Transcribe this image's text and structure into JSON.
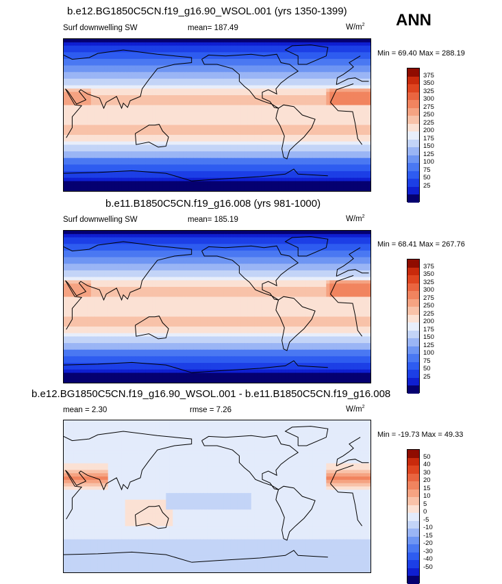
{
  "season": "ANN",
  "palette": {
    "abs": [
      "#050070",
      "#0f1fd1",
      "#1c3fe6",
      "#2e5cf0",
      "#4a78f2",
      "#6e95f3",
      "#9ab5f5",
      "#c3d4f7",
      "#e8eefb",
      "#fbe1d4",
      "#f8c2a9",
      "#f5a382",
      "#f1845f",
      "#ea6540",
      "#df4520",
      "#c92a0c",
      "#8f0c00"
    ],
    "diff": [
      "#050070",
      "#0f1fd1",
      "#1c3fe6",
      "#2e5cf0",
      "#4a78f2",
      "#6e95f3",
      "#9ab5f5",
      "#c3d4f7",
      "#e3ebfb",
      "#fbe1d4",
      "#f8c2a9",
      "#f5a382",
      "#f1845f",
      "#ea6540",
      "#df4520",
      "#c92a0c",
      "#8f0c00"
    ]
  },
  "chart_data": [
    {
      "type": "heatmap",
      "title": "b.e12.BG1850C5CN.f19_g16.90_WSOL.001 (yrs 1350-1399)",
      "variable": "Surf downwelling SW",
      "mean_label": "mean= 187.49",
      "units": "W/m",
      "units_sup": "2",
      "minmax": "Min =  69.40 Max = 288.19",
      "min": 69.4,
      "max": 288.19,
      "mean": 187.49,
      "levels": [
        "375",
        "350",
        "325",
        "300",
        "275",
        "250",
        "225",
        "200",
        "175",
        "150",
        "125",
        "100",
        "75",
        "50",
        "25"
      ],
      "kind": "abs"
    },
    {
      "type": "heatmap",
      "title": "b.e11.B1850C5CN.f19_g16.008 (yrs 981-1000)",
      "variable": "Surf downwelling SW",
      "mean_label": "mean= 185.19",
      "units": "W/m",
      "units_sup": "2",
      "minmax": "Min =  68.41 Max = 267.76",
      "min": 68.41,
      "max": 267.76,
      "mean": 185.19,
      "levels": [
        "375",
        "350",
        "325",
        "300",
        "275",
        "250",
        "225",
        "200",
        "175",
        "150",
        "125",
        "100",
        "75",
        "50",
        "25"
      ],
      "kind": "abs"
    },
    {
      "type": "heatmap",
      "title": "b.e12.BG1850C5CN.f19_g16.90_WSOL.001 - b.e11.B1850C5CN.f19_g16.008",
      "variable": "mean =   2.30",
      "mean_label": "rmse =   7.26",
      "units": "W/m",
      "units_sup": "2",
      "minmax": "Min = -19.73 Max =  49.33",
      "min": -19.73,
      "max": 49.33,
      "mean": 2.3,
      "rmse": 7.26,
      "levels": [
        "50",
        "40",
        "30",
        "20",
        "15",
        "10",
        "5",
        "0",
        "-5",
        "-10",
        "-15",
        "-20",
        "-30",
        "-40",
        "-50"
      ],
      "kind": "diff"
    }
  ]
}
